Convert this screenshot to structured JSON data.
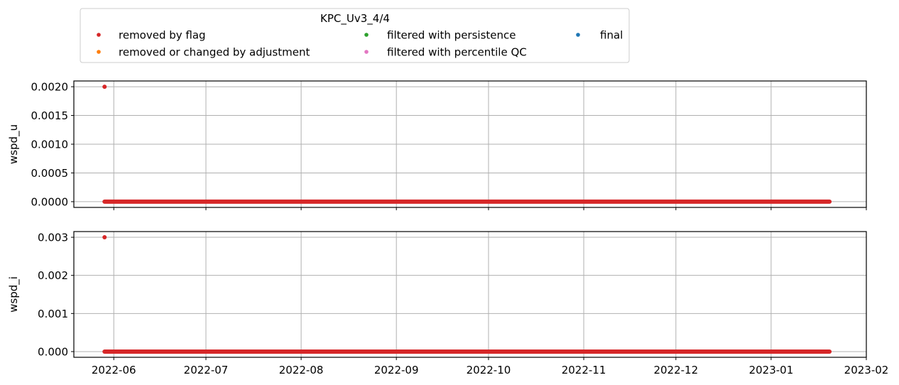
{
  "legend": {
    "title": "KPC_Uv3_4/4",
    "entries": [
      {
        "label": "removed by flag",
        "color": "#d62728"
      },
      {
        "label": "filtered with persistence",
        "color": "#2ca02c"
      },
      {
        "label": "final",
        "color": "#1f77b4"
      },
      {
        "label": "removed or changed by adjustment",
        "color": "#ff7f0e"
      },
      {
        "label": "filtered with percentile QC",
        "color": "#e377c2"
      }
    ]
  },
  "chart_data": [
    {
      "type": "scatter",
      "ylabel": "wspd_u",
      "xlim": [
        "2022-05-19",
        "2023-02-01"
      ],
      "ylim": [
        -0.0001,
        0.0021
      ],
      "x_ticks": [],
      "y_ticks": [
        "0.0000",
        "0.0005",
        "0.0010",
        "0.0015",
        "0.0020"
      ],
      "grid": true,
      "series": [
        {
          "name": "removed by flag",
          "color": "#d62728",
          "points": [
            {
              "x": "2022-05-29",
              "y": 0.002
            }
          ],
          "constant_run": {
            "x_start": "2022-05-29",
            "x_end": "2023-01-20",
            "y": 0.0
          }
        }
      ]
    },
    {
      "type": "scatter",
      "ylabel": "wspd_i",
      "xlim": [
        "2022-05-19",
        "2023-02-01"
      ],
      "ylim": [
        -0.00015,
        0.00315
      ],
      "x_ticks": [
        "2022-06",
        "2022-07",
        "2022-08",
        "2022-09",
        "2022-10",
        "2022-11",
        "2022-12",
        "2023-01",
        "2023-02"
      ],
      "y_ticks": [
        "0.000",
        "0.001",
        "0.002",
        "0.003"
      ],
      "grid": true,
      "series": [
        {
          "name": "removed by flag",
          "color": "#d62728",
          "points": [
            {
              "x": "2022-05-29",
              "y": 0.003
            }
          ],
          "constant_run": {
            "x_start": "2022-05-29",
            "x_end": "2023-01-20",
            "y": 0.0
          }
        }
      ]
    }
  ]
}
